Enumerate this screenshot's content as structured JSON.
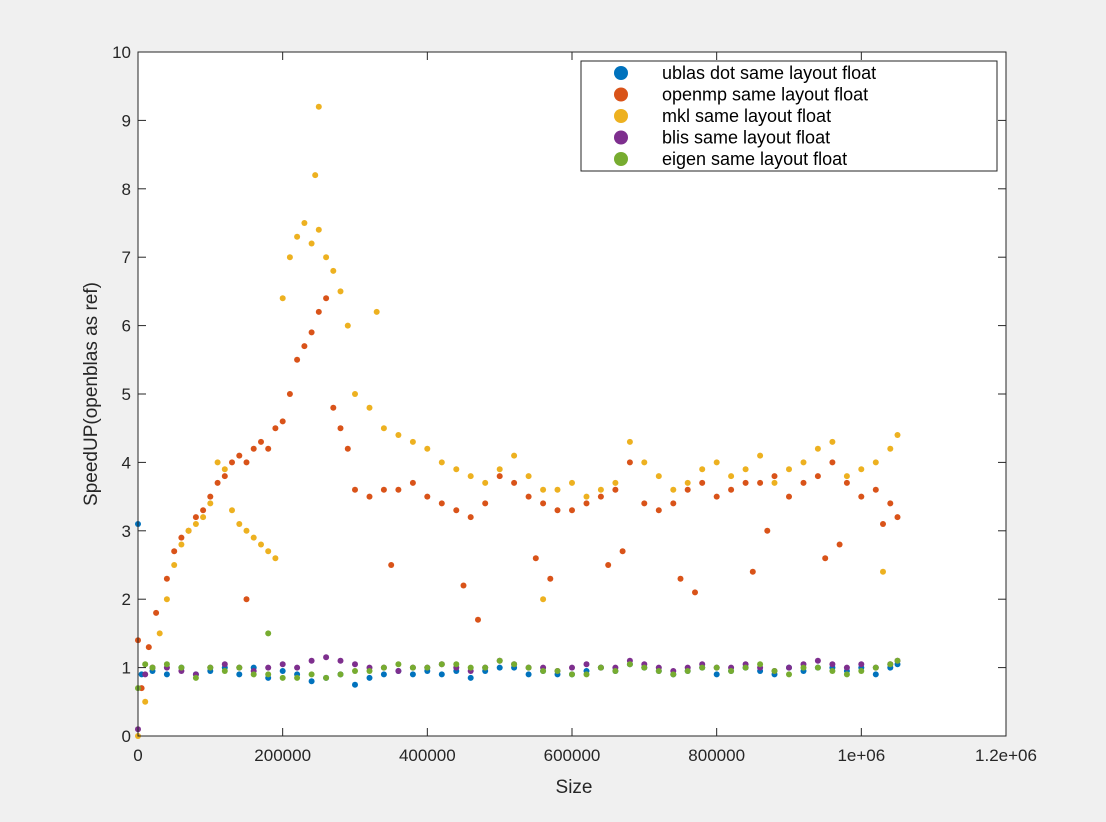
{
  "chart_data": {
    "type": "scatter",
    "title": "",
    "xlabel": "Size",
    "ylabel": "SpeedUP(openblas as ref)",
    "xlim": [
      0,
      1200000
    ],
    "ylim": [
      0,
      10
    ],
    "xticks": [
      0,
      200000,
      400000,
      600000,
      800000,
      1000000,
      1200000
    ],
    "xtick_labels": [
      "0",
      "200000",
      "400000",
      "600000",
      "800000",
      "1e+06",
      "1.2e+06"
    ],
    "yticks": [
      0,
      1,
      2,
      3,
      4,
      5,
      6,
      7,
      8,
      9,
      10
    ],
    "ytick_labels": [
      "0",
      "1",
      "2",
      "3",
      "4",
      "5",
      "6",
      "7",
      "8",
      "9",
      "10"
    ],
    "grid": false,
    "legend_position": "top-right",
    "series": [
      {
        "name": "ublas dot same layout float",
        "color": "#0072bd",
        "x": [
          0,
          5000,
          20000,
          40000,
          60000,
          80000,
          100000,
          120000,
          140000,
          160000,
          180000,
          200000,
          220000,
          240000,
          260000,
          280000,
          300000,
          320000,
          340000,
          360000,
          380000,
          400000,
          420000,
          440000,
          460000,
          480000,
          500000,
          520000,
          540000,
          560000,
          580000,
          600000,
          620000,
          640000,
          660000,
          680000,
          700000,
          720000,
          740000,
          760000,
          780000,
          800000,
          820000,
          840000,
          860000,
          880000,
          900000,
          920000,
          940000,
          960000,
          980000,
          1000000,
          1020000,
          1040000,
          1050000
        ],
        "y": [
          3.1,
          0.9,
          0.95,
          0.9,
          1.0,
          0.9,
          0.95,
          1.0,
          0.9,
          1.0,
          0.85,
          0.95,
          0.9,
          0.8,
          0.85,
          0.9,
          0.75,
          0.85,
          0.9,
          0.95,
          0.9,
          0.95,
          0.9,
          0.95,
          0.85,
          0.95,
          1.0,
          1.0,
          0.9,
          0.95,
          0.9,
          0.9,
          0.95,
          1.0,
          0.95,
          1.05,
          1.0,
          0.95,
          0.9,
          0.95,
          1.0,
          0.9,
          0.95,
          1.0,
          0.95,
          0.9,
          1.0,
          0.95,
          1.0,
          1.0,
          0.95,
          1.0,
          0.9,
          1.0,
          1.05
        ]
      },
      {
        "name": "openmp same layout float",
        "color": "#d95319",
        "x": [
          0,
          5000,
          15000,
          25000,
          40000,
          50000,
          60000,
          70000,
          80000,
          90000,
          100000,
          110000,
          120000,
          130000,
          140000,
          150000,
          160000,
          170000,
          180000,
          190000,
          200000,
          210000,
          220000,
          230000,
          240000,
          250000,
          260000,
          270000,
          280000,
          290000,
          300000,
          320000,
          340000,
          360000,
          380000,
          400000,
          420000,
          440000,
          460000,
          480000,
          500000,
          520000,
          540000,
          560000,
          580000,
          600000,
          620000,
          640000,
          660000,
          680000,
          700000,
          720000,
          740000,
          760000,
          780000,
          800000,
          820000,
          840000,
          860000,
          880000,
          900000,
          920000,
          940000,
          960000,
          980000,
          1000000,
          1020000,
          1040000,
          1050000,
          150000,
          350000,
          450000,
          550000,
          650000,
          750000,
          850000,
          950000,
          470000,
          570000,
          670000,
          770000,
          870000,
          970000,
          1030000
        ],
        "y": [
          1.4,
          0.7,
          1.3,
          1.8,
          2.3,
          2.7,
          2.9,
          3.0,
          3.2,
          3.3,
          3.5,
          3.7,
          3.8,
          4.0,
          4.1,
          4.0,
          4.2,
          4.3,
          4.2,
          4.5,
          4.6,
          5.0,
          5.5,
          5.7,
          5.9,
          6.2,
          6.4,
          4.8,
          4.5,
          4.2,
          3.6,
          3.5,
          3.6,
          3.6,
          3.7,
          3.5,
          3.4,
          3.3,
          3.2,
          3.4,
          3.8,
          3.7,
          3.5,
          3.4,
          3.3,
          3.3,
          3.4,
          3.5,
          3.6,
          4.0,
          3.4,
          3.3,
          3.4,
          3.6,
          3.7,
          3.5,
          3.6,
          3.7,
          3.7,
          3.8,
          3.5,
          3.7,
          3.8,
          4.0,
          3.7,
          3.5,
          3.6,
          3.4,
          3.2,
          2.0,
          2.5,
          2.2,
          2.6,
          2.5,
          2.3,
          2.4,
          2.6,
          1.7,
          2.3,
          2.7,
          2.1,
          3.0,
          2.8,
          3.1
        ]
      },
      {
        "name": "mkl same layout float",
        "color": "#edb120",
        "x": [
          0,
          10000,
          20000,
          30000,
          40000,
          50000,
          60000,
          70000,
          80000,
          90000,
          100000,
          110000,
          120000,
          130000,
          140000,
          150000,
          160000,
          170000,
          180000,
          190000,
          200000,
          210000,
          220000,
          230000,
          240000,
          250000,
          260000,
          270000,
          280000,
          290000,
          300000,
          320000,
          340000,
          360000,
          380000,
          400000,
          420000,
          440000,
          460000,
          480000,
          500000,
          520000,
          540000,
          560000,
          580000,
          600000,
          620000,
          640000,
          660000,
          680000,
          700000,
          720000,
          740000,
          760000,
          780000,
          800000,
          820000,
          840000,
          860000,
          880000,
          900000,
          920000,
          940000,
          960000,
          980000,
          1000000,
          1020000,
          1040000,
          1050000,
          250000,
          245000,
          330000,
          560000,
          1030000
        ],
        "y": [
          0.0,
          0.5,
          1.0,
          1.5,
          2.0,
          2.5,
          2.8,
          3.0,
          3.1,
          3.2,
          3.4,
          4.0,
          3.9,
          3.3,
          3.1,
          3.0,
          2.9,
          2.8,
          2.7,
          2.6,
          6.4,
          7.0,
          7.3,
          7.5,
          7.2,
          7.4,
          7.0,
          6.8,
          6.5,
          6.0,
          5.0,
          4.8,
          4.5,
          4.4,
          4.3,
          4.2,
          4.0,
          3.9,
          3.8,
          3.7,
          3.9,
          4.1,
          3.8,
          3.6,
          3.6,
          3.7,
          3.5,
          3.6,
          3.7,
          4.3,
          4.0,
          3.8,
          3.6,
          3.7,
          3.9,
          4.0,
          3.8,
          3.9,
          4.1,
          3.7,
          3.9,
          4.0,
          4.2,
          4.3,
          3.8,
          3.9,
          4.0,
          4.2,
          4.4,
          9.2,
          8.2,
          6.2,
          2.0,
          2.4
        ]
      },
      {
        "name": "blis same layout float",
        "color": "#7e2f8e",
        "x": [
          0,
          10000,
          20000,
          40000,
          60000,
          80000,
          100000,
          120000,
          140000,
          160000,
          180000,
          200000,
          220000,
          240000,
          260000,
          280000,
          300000,
          320000,
          340000,
          360000,
          380000,
          400000,
          420000,
          440000,
          460000,
          480000,
          500000,
          520000,
          540000,
          560000,
          580000,
          600000,
          620000,
          640000,
          660000,
          680000,
          700000,
          720000,
          740000,
          760000,
          780000,
          800000,
          820000,
          840000,
          860000,
          880000,
          900000,
          920000,
          940000,
          960000,
          980000,
          1000000,
          1020000,
          1040000,
          1050000
        ],
        "y": [
          0.1,
          0.9,
          1.0,
          1.0,
          0.95,
          0.9,
          1.0,
          1.05,
          1.0,
          0.95,
          1.0,
          1.05,
          1.0,
          1.1,
          1.15,
          1.1,
          1.05,
          1.0,
          1.0,
          0.95,
          1.0,
          1.0,
          1.05,
          1.0,
          0.95,
          1.0,
          1.1,
          1.05,
          1.0,
          1.0,
          0.95,
          1.0,
          1.05,
          1.0,
          1.0,
          1.1,
          1.05,
          1.0,
          0.95,
          1.0,
          1.05,
          1.0,
          1.0,
          1.05,
          1.0,
          0.95,
          1.0,
          1.05,
          1.1,
          1.05,
          1.0,
          1.05,
          1.0,
          1.05,
          1.1
        ]
      },
      {
        "name": "eigen same layout float",
        "color": "#77ac30",
        "x": [
          0,
          10000,
          20000,
          40000,
          60000,
          80000,
          100000,
          120000,
          140000,
          160000,
          180000,
          200000,
          220000,
          240000,
          260000,
          280000,
          300000,
          320000,
          340000,
          360000,
          380000,
          400000,
          420000,
          440000,
          460000,
          480000,
          500000,
          520000,
          540000,
          560000,
          580000,
          600000,
          620000,
          640000,
          660000,
          680000,
          700000,
          720000,
          740000,
          760000,
          780000,
          800000,
          820000,
          840000,
          860000,
          880000,
          900000,
          920000,
          940000,
          960000,
          980000,
          1000000,
          1020000,
          1040000,
          1050000,
          180000
        ],
        "y": [
          0.7,
          1.05,
          1.0,
          1.05,
          1.0,
          0.85,
          1.0,
          0.95,
          1.0,
          0.9,
          0.9,
          0.85,
          0.85,
          0.9,
          0.85,
          0.9,
          0.95,
          0.95,
          1.0,
          1.05,
          1.0,
          1.0,
          1.05,
          1.05,
          1.0,
          1.0,
          1.1,
          1.05,
          1.0,
          0.95,
          0.95,
          0.9,
          0.9,
          1.0,
          0.95,
          1.05,
          1.0,
          0.95,
          0.9,
          0.95,
          1.0,
          1.0,
          0.95,
          1.0,
          1.05,
          0.95,
          0.9,
          1.0,
          1.0,
          0.95,
          0.9,
          0.95,
          1.0,
          1.05,
          1.1,
          1.5
        ]
      }
    ]
  }
}
